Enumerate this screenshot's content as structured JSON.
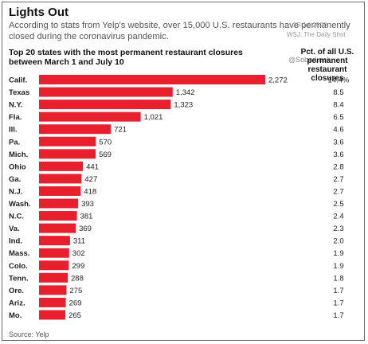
{
  "header": {
    "title": "Lights Out",
    "subtitle": "According to stats from Yelp's website, over 15,000 U.S. restaurants have permanently closed during the coronavirus pandemic."
  },
  "watermark": {
    "date": "23-Jul-2020",
    "source": "WSJ: The Daily Shot",
    "handle": "@SoberLook"
  },
  "footer": {
    "source": "Source: Yelp"
  },
  "colors": {
    "bar": "#e8202e",
    "text": "#1e1e1e"
  },
  "chart_data": {
    "type": "bar",
    "orientation": "horizontal",
    "title": "Top 20 states with the most permanent restaurant closures between March 1 and July 10",
    "pct_header": "Pct. of all U.S. permanent restaurant closures",
    "categories": [
      "Calif.",
      "Texas",
      "N.Y.",
      "Fla.",
      "Ill.",
      "Pa.",
      "Mich.",
      "Ohio",
      "Ga.",
      "N.J.",
      "Wash.",
      "N.C.",
      "Va.",
      "Ind.",
      "Mass.",
      "Colo.",
      "Tenn.",
      "Ore.",
      "Ariz.",
      "Mo."
    ],
    "values": [
      2272,
      1342,
      1323,
      1021,
      721,
      570,
      569,
      441,
      427,
      418,
      393,
      381,
      369,
      311,
      302,
      299,
      288,
      275,
      269,
      265
    ],
    "value_labels": [
      "2,272",
      "1,342",
      "1,323",
      "1,021",
      "721",
      "570",
      "569",
      "441",
      "427",
      "418",
      "393",
      "381",
      "369",
      "311",
      "302",
      "299",
      "288",
      "275",
      "269",
      "265"
    ],
    "pct_labels": [
      "14.4%",
      "8.5",
      "8.4",
      "6.5",
      "4.6",
      "3.6",
      "3.6",
      "2.8",
      "2.7",
      "2.7",
      "2.5",
      "2.4",
      "2.3",
      "2.0",
      "1.9",
      "1.9",
      "1.8",
      "1.7",
      "1.7",
      "1.7"
    ],
    "xlim": [
      0,
      2272
    ],
    "grid": false,
    "legend": "none"
  }
}
